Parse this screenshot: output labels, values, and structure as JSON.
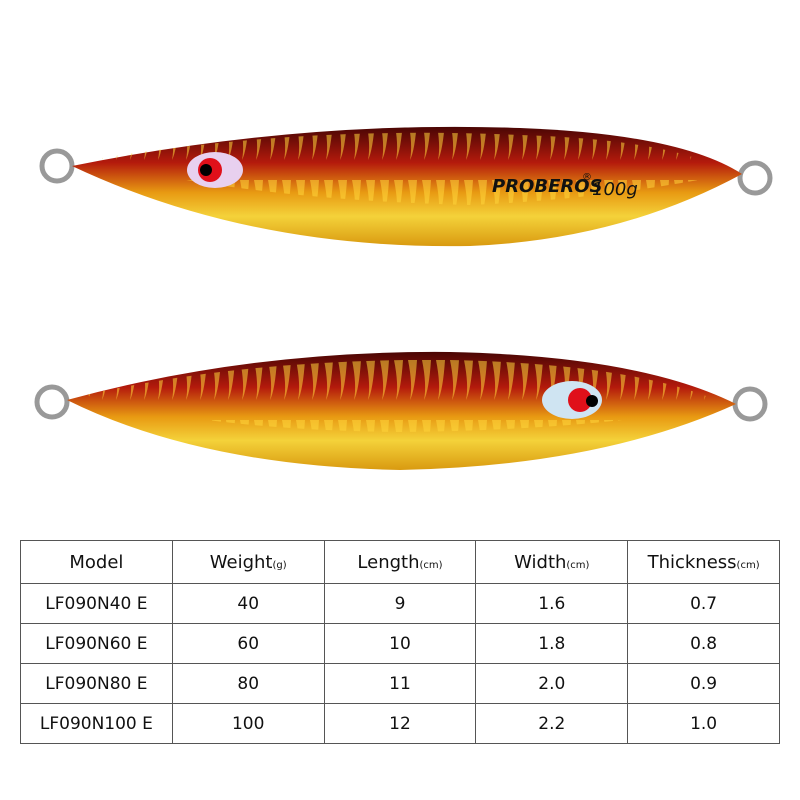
{
  "lure_text": {
    "brand": "PROBEROS",
    "registered": "®",
    "weight": "100g"
  },
  "table": {
    "headers": [
      {
        "name": "Model"
      },
      {
        "name": "Weight",
        "unit": "(g)"
      },
      {
        "name": "Length",
        "unit": "(cm)"
      },
      {
        "name": "Width",
        "unit": "(cm)"
      },
      {
        "name": "Thickness",
        "unit": "(cm)"
      }
    ],
    "rows": [
      [
        "LF090N40 E",
        "40",
        "9",
        "1.6",
        "0.7"
      ],
      [
        "LF090N60 E",
        "60",
        "10",
        "1.8",
        "0.8"
      ],
      [
        "LF090N80 E",
        "80",
        "11",
        "2.0",
        "0.9"
      ],
      [
        "LF090N100 E",
        "100",
        "12",
        "2.2",
        "1.0"
      ]
    ]
  }
}
